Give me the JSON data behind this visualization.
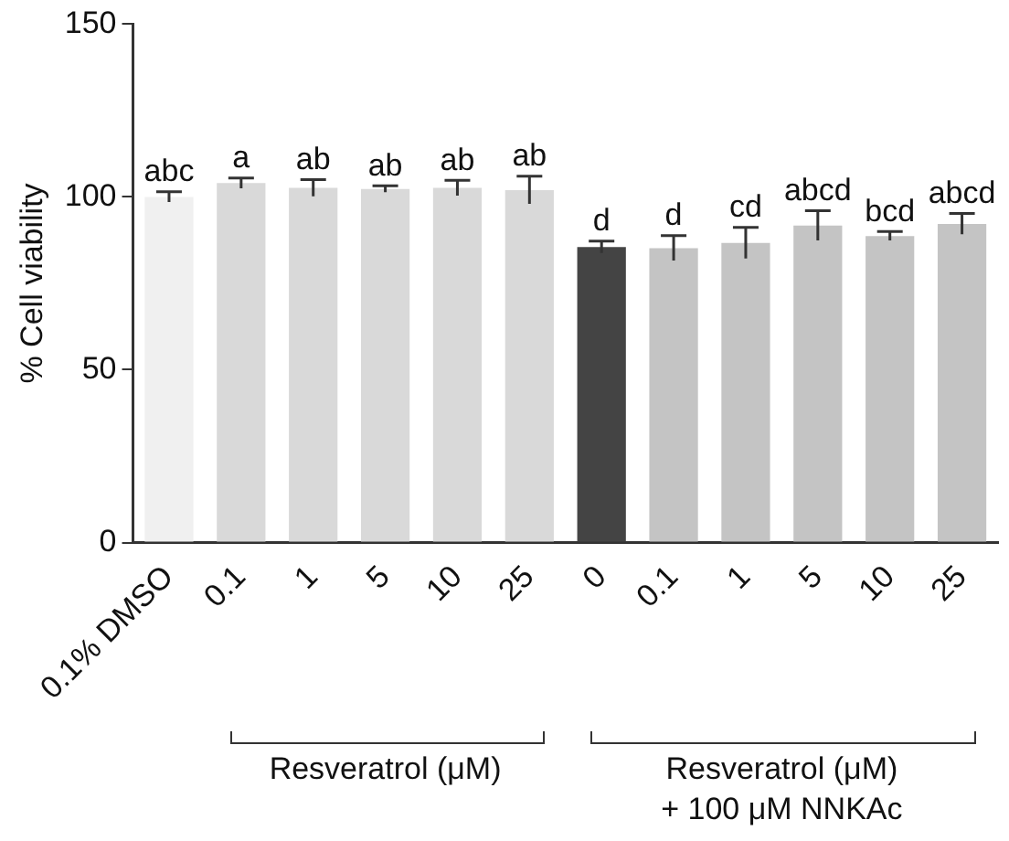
{
  "chart_data": {
    "type": "bar",
    "ylabel": "% Cell viability",
    "categories": [
      "0.1% DMSO",
      "0.1",
      "1",
      "5",
      "10",
      "25",
      "0",
      "0.1",
      "1",
      "5",
      "10",
      "25"
    ],
    "values": [
      100,
      104,
      102.6,
      102.3,
      102.6,
      102,
      85.5,
      85.2,
      86.7,
      91.7,
      88.7,
      92.2
    ],
    "errors": [
      1.5,
      1.5,
      2.4,
      0.9,
      2.2,
      4,
      1.7,
      3.6,
      4.5,
      4.3,
      1.3,
      3
    ],
    "value_labels": [
      "abc",
      "a",
      "ab",
      "ab",
      "ab",
      "ab",
      "d",
      "d",
      "cd",
      "abcd",
      "bcd",
      "abcd"
    ],
    "colors": [
      "#f0f0f0",
      "#d9d9d9",
      "#d9d9d9",
      "#d9d9d9",
      "#d9d9d9",
      "#d9d9d9",
      "#444444",
      "#c4c4c4",
      "#c4c4c4",
      "#c4c4c4",
      "#c4c4c4",
      "#c4c4c4"
    ],
    "ylim": [
      0,
      150
    ],
    "yticks": [
      0,
      50,
      100,
      150
    ],
    "grid": false,
    "legend": false,
    "annotations": [
      "Resveratrol (μM)",
      "Resveratrol (μM)\n+ 100 μM NNKAc"
    ]
  }
}
